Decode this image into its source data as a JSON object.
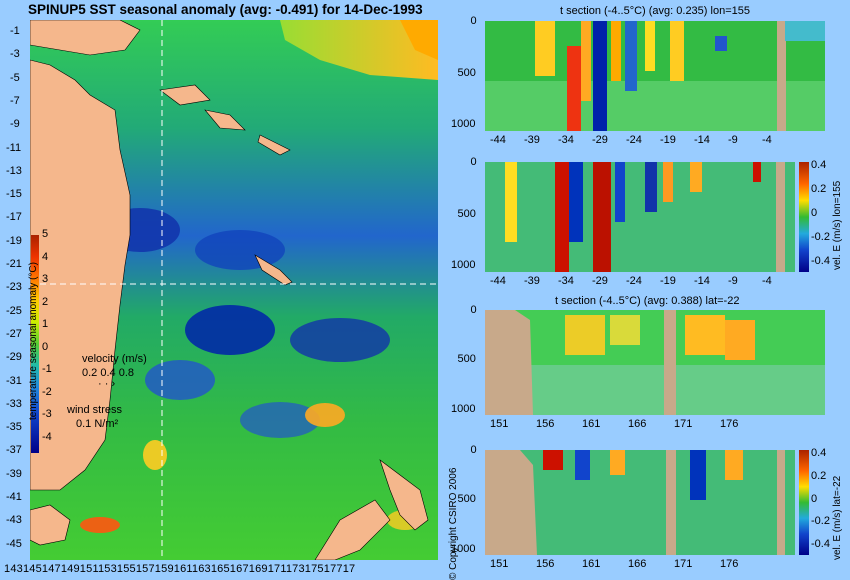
{
  "map": {
    "title": "SPINUP5 SST seasonal anomaly (avg: -0.491) for 14-Dec-1993",
    "lat_labels": [
      "-1",
      "-3",
      "-5",
      "-7",
      "-9",
      "-11",
      "-13",
      "-15",
      "-17",
      "-19",
      "-21",
      "-23",
      "-25",
      "-27",
      "-29",
      "-31",
      "-33",
      "-35",
      "-37",
      "-39",
      "-41",
      "-43",
      "-45"
    ],
    "lon_labels": "14314514714915115315515715916116316516716917117317517717",
    "colorbar": {
      "label": "temperature seasonal anomaly (°C)",
      "ticks": [
        "5",
        "4",
        "3",
        "2",
        "1",
        "0",
        "-1",
        "-2",
        "-3",
        "-4"
      ]
    },
    "velocity_legend": {
      "title": "velocity (m/s)",
      "values": "0.2 0.4 0.8"
    },
    "wind_legend": {
      "title": "wind stress",
      "value": "0.1 N/m²"
    },
    "copyright": "© Copyright CSIRO 2006"
  },
  "panels": [
    {
      "title": "t section (-4..5°C) (avg: 0.235) lon=155",
      "y_ticks": [
        "0",
        "500",
        "1000"
      ],
      "x_ticks": [
        "-44",
        "-39",
        "-34",
        "-29",
        "-24",
        "-19",
        "-14",
        "-9",
        "-4"
      ]
    },
    {
      "title": "",
      "y_ticks": [
        "0",
        "500",
        "1000"
      ],
      "x_ticks": [
        "-44",
        "-39",
        "-34",
        "-29",
        "-24",
        "-19",
        "-14",
        "-9",
        "-4"
      ],
      "cb_label": "vel. E (m/s) lon=155",
      "cb_ticks": [
        "0.4",
        "0.2",
        "0",
        "-0.2",
        "-0.4"
      ]
    },
    {
      "title": "t section (-4..5°C) (avg: 0.388) lat=-22",
      "y_ticks": [
        "0",
        "500",
        "1000"
      ],
      "x_ticks": [
        "151",
        "156",
        "161",
        "166",
        "171",
        "176"
      ]
    },
    {
      "title": "",
      "y_ticks": [
        "0",
        "500",
        "1000"
      ],
      "x_ticks": [
        "151",
        "156",
        "161",
        "166",
        "171",
        "176"
      ],
      "cb_label": "vel. E (m/s) lat=-22",
      "cb_ticks": [
        "0.4",
        "0.2",
        "0",
        "-0.2",
        "-0.4"
      ]
    }
  ],
  "colors": {
    "background": "#99ccff",
    "land": "#f5b78c",
    "section_land": "#c8a98a"
  }
}
